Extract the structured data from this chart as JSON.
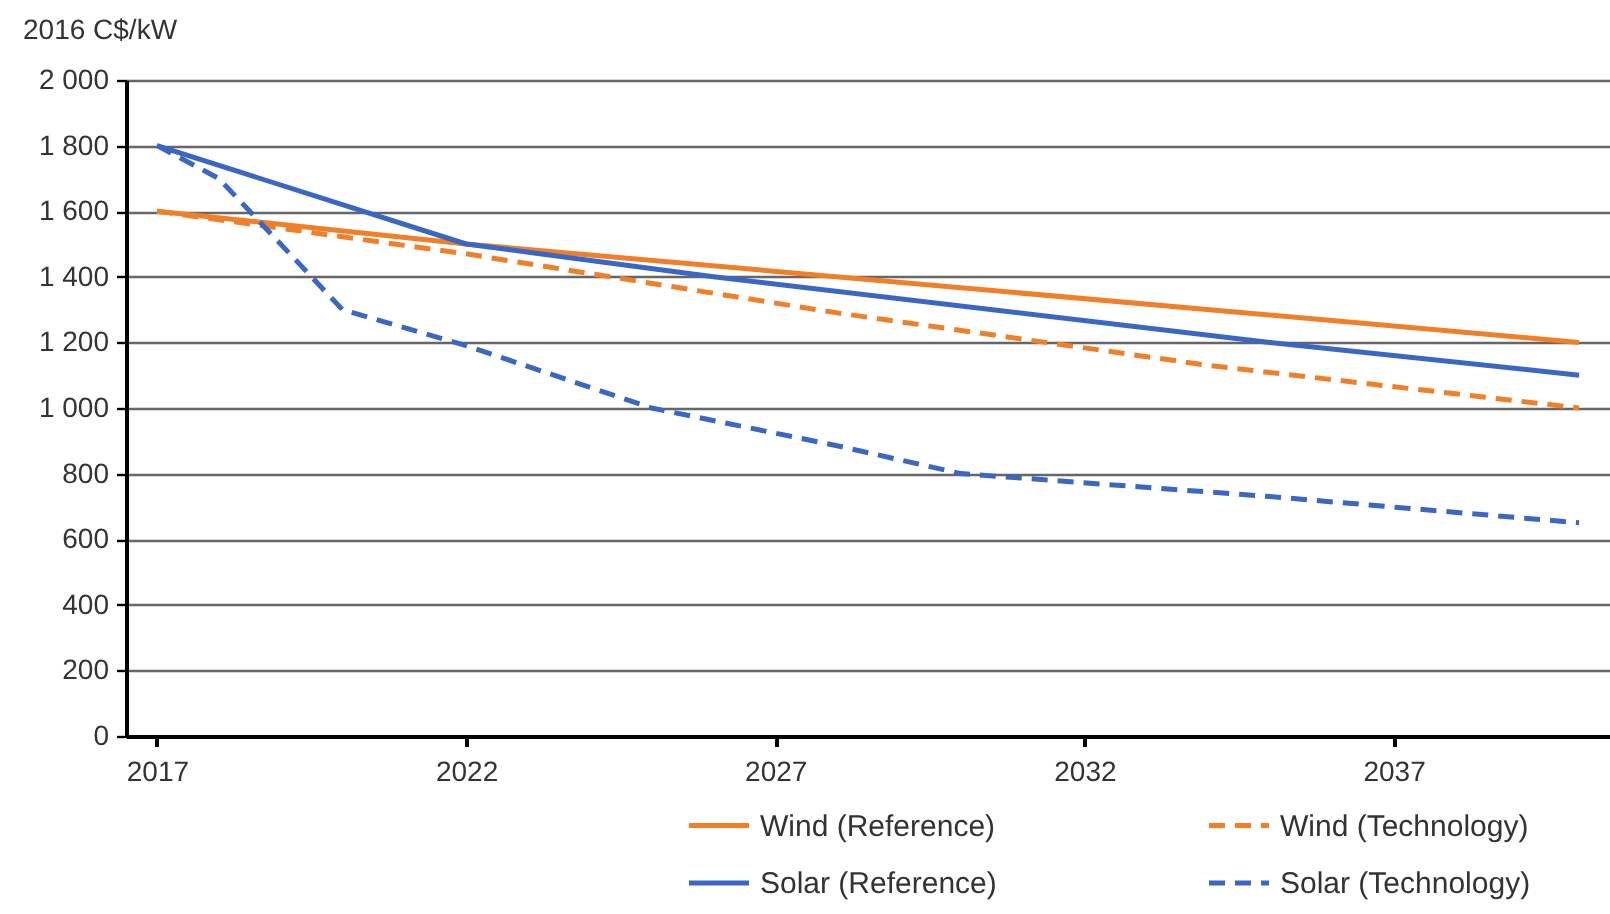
{
  "chart_data": {
    "type": "line",
    "ylabel": "2016 C$/kW",
    "xlim": [
      2016.5,
      2040.5
    ],
    "xticks": [
      2017,
      2022,
      2027,
      2032,
      2037
    ],
    "ylim": [
      0,
      2000
    ],
    "yticks": [
      0,
      200,
      400,
      600,
      800,
      {
        "value": 1000,
        "label": "1 000"
      },
      {
        "value": 1200,
        "label": "1 200"
      },
      {
        "value": 1400,
        "label": "1 400"
      },
      {
        "value": 1600,
        "label": "1 600"
      },
      {
        "value": 1800,
        "label": "1 800"
      },
      {
        "value": 2000,
        "label": "2 000"
      }
    ],
    "grid": "y",
    "legend": "bottom",
    "marker": "none",
    "series": [
      {
        "name": "Wind (Reference)",
        "color": "#f07f28",
        "line_style": "solid",
        "x": [
          2017,
          2022,
          2040
        ],
        "values": [
          1600,
          1500,
          1200
        ]
      },
      {
        "name": "Wind (Technology)",
        "color": "#f07f28",
        "line_style": "dashed",
        "x": [
          2017,
          2022,
          2028,
          2034,
          2040
        ],
        "values": [
          1600,
          1470,
          1290,
          1130,
          1000
        ]
      },
      {
        "name": "Solar (Reference)",
        "color": "#3a66c4",
        "line_style": "solid",
        "x": [
          2017,
          2022,
          2026,
          2035,
          2040
        ],
        "values": [
          1800,
          1500,
          1400,
          1200,
          1100
        ]
      },
      {
        "name": "Solar (Technology)",
        "color": "#3a66c4",
        "line_style": "dashed",
        "x": [
          2017,
          2018,
          2020,
          2022,
          2025,
          2028,
          2030,
          2035,
          2040
        ],
        "values": [
          1800,
          1700,
          1300,
          1190,
          1000,
          885,
          800,
          730,
          650
        ]
      }
    ]
  }
}
